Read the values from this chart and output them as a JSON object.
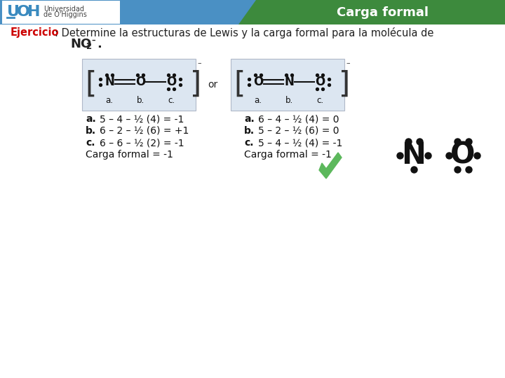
{
  "header_blue": "#4a90c4",
  "header_green": "#3d8a3d",
  "header_title": "Carga formal",
  "header_title_color": "#ffffff",
  "bg_color": "#ffffff",
  "ejercicio_label": "Ejercicio",
  "ejercicio_label_color": "#cc0000",
  "ejercicio_text": ": Determine la estructuras de Lewis y la carga formal para la molécula de",
  "molecule_text": "NO",
  "molecule_sub": "2",
  "molecule_sup": "–",
  "molecule_suffix": ".",
  "box_bg": "#dce6f1",
  "or_text": "or",
  "left_abc": [
    "a.",
    "b.",
    "c."
  ],
  "right_abc": [
    "a.",
    "b.",
    "c."
  ],
  "left_calcs": [
    "5 – 4 – ½ (4) = -1",
    "6 – 2 – ½ (6) = +1",
    "6 – 6 – ½ (2) = -1"
  ],
  "right_calcs": [
    "6 – 4 – ½ (4) = 0",
    "5 – 2 – ½ (6) = 0",
    "5 – 4 – ½ (4) = -1"
  ],
  "left_carga": "Carga formal = -1",
  "right_carga": "Carga formal = -1",
  "checkmark_color": "#5cb85c",
  "text_color": "#222222",
  "dot_color": "#111111",
  "font_size_header": 13,
  "font_size_body": 10.5,
  "font_size_calc": 10,
  "font_size_molecule": 13,
  "font_size_struct": 12,
  "logo_uoh_color": "#3a8abf",
  "logo_text_color": "#444444"
}
